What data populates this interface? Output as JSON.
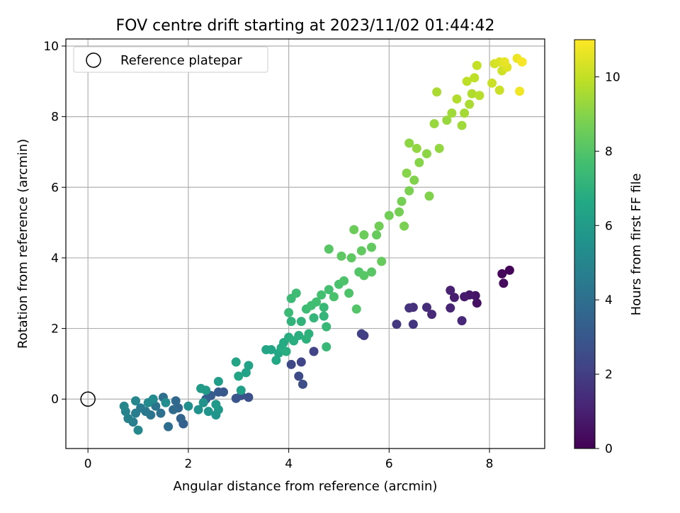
{
  "chart_data": {
    "type": "scatter",
    "title": "FOV centre drift starting at 2023/11/02 01:44:42",
    "xlabel": "Angular distance from reference (arcmin)",
    "ylabel": "Rotation from reference (arcmin)",
    "xlim": [
      -0.44,
      9.1
    ],
    "ylim": [
      -1.4,
      10.2
    ],
    "xticks": [
      0,
      2,
      4,
      6,
      8
    ],
    "yticks": [
      0,
      2,
      4,
      6,
      8,
      10
    ],
    "xtick_labels": [
      "0",
      "2",
      "4",
      "6",
      "8"
    ],
    "ytick_labels": [
      "0",
      "2",
      "4",
      "6",
      "8",
      "10"
    ],
    "grid": true,
    "legend": {
      "position": "top-left",
      "entries": [
        {
          "label": "Reference platepar",
          "marker": "open-circle"
        }
      ]
    },
    "reference_point": {
      "x": 0,
      "y": 0
    },
    "colorbar": {
      "label": "Hours from first FF file",
      "range": [
        0,
        11
      ],
      "ticks": [
        0,
        2,
        4,
        6,
        8,
        10
      ],
      "tick_labels": [
        "0",
        "2",
        "4",
        "6",
        "8",
        "10"
      ],
      "colormap": "viridis"
    },
    "series": [
      {
        "points": [
          [
            8.4,
            3.65,
            0.1
          ],
          [
            8.25,
            3.55,
            0.2
          ],
          [
            8.28,
            3.28,
            0.3
          ],
          [
            7.75,
            2.72,
            0.5
          ],
          [
            7.72,
            2.93,
            0.6
          ],
          [
            7.6,
            2.95,
            0.7
          ],
          [
            7.5,
            2.9,
            0.8
          ],
          [
            7.3,
            2.88,
            0.9
          ],
          [
            7.22,
            3.08,
            1.0
          ],
          [
            7.22,
            2.58,
            1.1
          ],
          [
            7.45,
            2.22,
            1.2
          ],
          [
            6.85,
            2.4,
            1.3
          ],
          [
            6.75,
            2.6,
            1.4
          ],
          [
            6.48,
            2.6,
            1.5
          ],
          [
            6.4,
            2.58,
            1.6
          ],
          [
            6.48,
            2.12,
            1.7
          ],
          [
            6.15,
            2.12,
            1.8
          ],
          [
            5.5,
            1.8,
            2.0
          ],
          [
            5.45,
            1.85,
            2.1
          ],
          [
            4.5,
            1.35,
            2.2
          ],
          [
            4.25,
            1.05,
            2.3
          ],
          [
            4.05,
            0.98,
            2.4
          ],
          [
            4.2,
            0.65,
            2.5
          ],
          [
            4.28,
            0.42,
            2.6
          ],
          [
            3.2,
            0.05,
            2.7
          ],
          [
            3.05,
            0.1,
            2.8
          ],
          [
            2.95,
            0.02,
            2.9
          ],
          [
            2.7,
            0.2,
            3.0
          ],
          [
            2.6,
            0.2,
            3.1
          ],
          [
            2.45,
            0.1,
            3.2
          ],
          [
            2.35,
            0.0,
            3.3
          ],
          [
            1.9,
            -0.7,
            3.4
          ],
          [
            1.85,
            -0.55,
            3.5
          ],
          [
            1.8,
            -0.25,
            3.6
          ],
          [
            1.75,
            -0.05,
            3.7
          ],
          [
            1.7,
            -0.3,
            3.8
          ],
          [
            1.6,
            -0.78,
            3.9
          ],
          [
            1.5,
            0.05,
            4.0
          ],
          [
            1.45,
            -0.4,
            4.1
          ],
          [
            1.35,
            -0.2,
            4.2
          ],
          [
            1.25,
            -0.45,
            4.3
          ],
          [
            1.15,
            -0.35,
            4.4
          ],
          [
            1.05,
            -0.25,
            4.5
          ],
          [
            0.95,
            -0.4,
            4.6
          ],
          [
            0.9,
            -0.65,
            4.7
          ],
          [
            0.8,
            -0.55,
            4.8
          ],
          [
            0.75,
            -0.35,
            4.9
          ],
          [
            0.72,
            -0.2,
            5.0
          ],
          [
            0.95,
            -0.05,
            5.0
          ],
          [
            1.0,
            -0.88,
            5.1
          ],
          [
            1.2,
            -0.1,
            5.2
          ],
          [
            1.3,
            0.0,
            5.2
          ],
          [
            1.55,
            -0.1,
            5.3
          ],
          [
            2.0,
            -0.2,
            5.4
          ],
          [
            2.2,
            -0.3,
            5.5
          ],
          [
            2.3,
            -0.1,
            5.6
          ],
          [
            2.4,
            -0.35,
            5.7
          ],
          [
            2.55,
            -0.45,
            5.7
          ],
          [
            2.6,
            -0.3,
            5.8
          ],
          [
            2.55,
            -0.15,
            5.9
          ],
          [
            2.25,
            0.3,
            6.0
          ],
          [
            2.35,
            0.25,
            6.0
          ],
          [
            2.6,
            0.5,
            6.1
          ],
          [
            3.05,
            0.25,
            6.2
          ],
          [
            3.15,
            0.75,
            6.3
          ],
          [
            3.2,
            0.95,
            6.3
          ],
          [
            3.0,
            0.65,
            6.4
          ],
          [
            2.95,
            1.05,
            6.4
          ],
          [
            3.55,
            1.4,
            6.5
          ],
          [
            3.65,
            1.4,
            6.5
          ],
          [
            3.75,
            1.1,
            6.6
          ],
          [
            3.8,
            1.3,
            6.6
          ],
          [
            3.85,
            1.45,
            6.7
          ],
          [
            3.9,
            1.6,
            6.7
          ],
          [
            3.95,
            1.35,
            6.8
          ],
          [
            4.0,
            1.75,
            6.8
          ],
          [
            4.1,
            1.65,
            6.9
          ],
          [
            4.2,
            1.8,
            6.9
          ],
          [
            4.35,
            1.7,
            7.0
          ],
          [
            4.4,
            1.85,
            7.0
          ],
          [
            4.05,
            2.2,
            7.1
          ],
          [
            4.25,
            2.2,
            7.1
          ],
          [
            4.5,
            2.3,
            7.2
          ],
          [
            4.7,
            2.35,
            7.2
          ],
          [
            4.75,
            2.05,
            7.3
          ],
          [
            4.7,
            2.6,
            7.3
          ],
          [
            4.75,
            1.48,
            7.3
          ],
          [
            4.0,
            2.45,
            7.4
          ],
          [
            4.05,
            2.85,
            7.4
          ],
          [
            4.15,
            3.0,
            7.5
          ],
          [
            4.35,
            2.55,
            7.5
          ],
          [
            4.45,
            2.65,
            7.6
          ],
          [
            4.55,
            2.75,
            7.6
          ],
          [
            4.65,
            2.95,
            7.7
          ],
          [
            4.8,
            3.1,
            7.7
          ],
          [
            4.9,
            2.9,
            7.8
          ],
          [
            5.0,
            3.25,
            7.8
          ],
          [
            5.1,
            3.35,
            7.9
          ],
          [
            5.2,
            3.0,
            7.9
          ],
          [
            5.35,
            2.55,
            8.0
          ],
          [
            5.4,
            3.6,
            8.0
          ],
          [
            5.5,
            3.5,
            8.1
          ],
          [
            5.65,
            3.6,
            8.1
          ],
          [
            4.8,
            4.25,
            8.1
          ],
          [
            5.05,
            4.05,
            8.2
          ],
          [
            5.25,
            4.0,
            8.2
          ],
          [
            5.45,
            4.2,
            8.3
          ],
          [
            5.65,
            4.3,
            8.3
          ],
          [
            5.75,
            4.65,
            8.4
          ],
          [
            5.85,
            3.9,
            8.4
          ],
          [
            5.3,
            4.8,
            8.5
          ],
          [
            5.5,
            4.65,
            8.5
          ],
          [
            5.8,
            4.9,
            8.6
          ],
          [
            6.0,
            5.2,
            8.6
          ],
          [
            6.2,
            5.3,
            8.7
          ],
          [
            6.25,
            5.6,
            8.7
          ],
          [
            6.3,
            4.9,
            8.8
          ],
          [
            6.4,
            5.9,
            8.8
          ],
          [
            6.5,
            6.2,
            8.9
          ],
          [
            6.8,
            5.75,
            8.9
          ],
          [
            6.35,
            6.4,
            9.0
          ],
          [
            6.6,
            6.7,
            9.0
          ],
          [
            6.75,
            6.95,
            9.1
          ],
          [
            6.4,
            7.25,
            9.1
          ],
          [
            6.55,
            7.1,
            9.2
          ],
          [
            7.0,
            7.1,
            9.2
          ],
          [
            6.9,
            7.8,
            9.3
          ],
          [
            7.15,
            7.9,
            9.3
          ],
          [
            7.25,
            8.1,
            9.4
          ],
          [
            7.45,
            7.75,
            9.4
          ],
          [
            7.5,
            8.1,
            9.5
          ],
          [
            7.6,
            8.35,
            9.6
          ],
          [
            6.95,
            8.7,
            9.6
          ],
          [
            7.35,
            8.5,
            9.7
          ],
          [
            7.65,
            8.65,
            9.7
          ],
          [
            7.8,
            8.6,
            9.8
          ],
          [
            7.55,
            9.0,
            9.9
          ],
          [
            7.7,
            9.1,
            9.9
          ],
          [
            7.75,
            9.45,
            10.0
          ],
          [
            8.05,
            8.95,
            10.1
          ],
          [
            8.2,
            8.75,
            10.1
          ],
          [
            8.25,
            9.3,
            10.2
          ],
          [
            8.1,
            9.5,
            10.3
          ],
          [
            8.2,
            9.55,
            10.4
          ],
          [
            8.35,
            9.4,
            10.5
          ],
          [
            8.3,
            9.55,
            10.6
          ],
          [
            8.55,
            9.65,
            10.7
          ],
          [
            8.6,
            8.72,
            10.8
          ],
          [
            8.65,
            9.55,
            10.9
          ]
        ]
      }
    ]
  }
}
